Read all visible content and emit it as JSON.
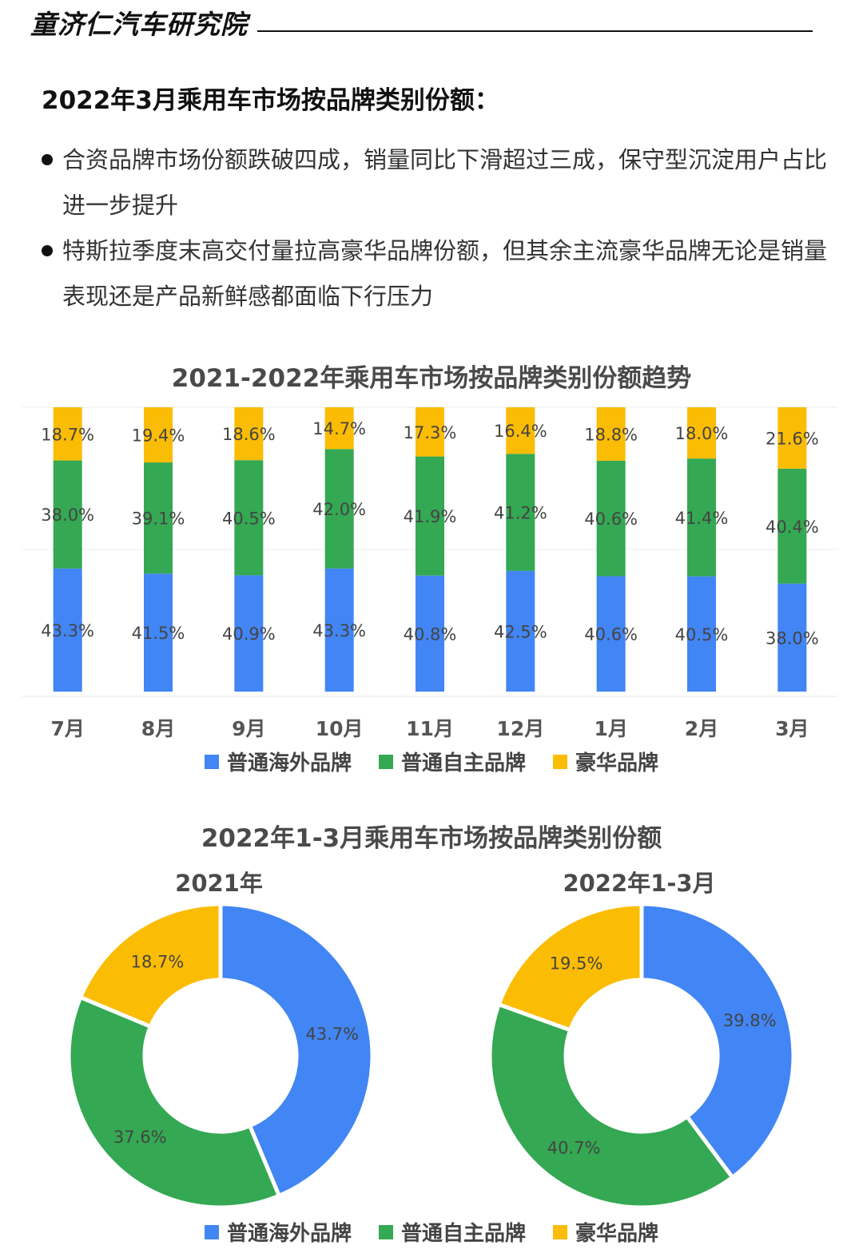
{
  "header": {
    "brand": "童济仁汽车研究院"
  },
  "headline": "2022年3月乘用车市场按品牌类别份额：",
  "bullets": [
    "合资品牌市场份额跌破四成，销量同比下滑超过三成，保守型沉淀用户占比进一步提升",
    "特斯拉季度末高交付量拉高豪华品牌份额，但其余主流豪华品牌无论是销量表现还是产品新鲜感都面临下行压力"
  ],
  "legend": [
    "普通海外品牌",
    "普通自主品牌",
    "豪华品牌"
  ],
  "colors": {
    "overseas": "#4285f4",
    "domestic": "#34a853",
    "luxury": "#fbbc04"
  },
  "chart_data": [
    {
      "type": "bar",
      "stacked": true,
      "title": "2021-2022年乘用车市场按品牌类别份额趋势",
      "categories": [
        "7月",
        "8月",
        "9月",
        "10月",
        "11月",
        "12月",
        "1月",
        "2月",
        "3月"
      ],
      "series": [
        {
          "name": "普通海外品牌",
          "values": [
            43.3,
            41.5,
            40.9,
            43.3,
            40.8,
            42.5,
            40.6,
            40.5,
            38.0
          ],
          "labels": [
            "43.3%",
            "41.5%",
            "40.9%",
            "43.3%",
            "40.8%",
            "42.5%",
            "40.6%",
            "40.5%",
            "38.0%"
          ]
        },
        {
          "name": "普通自主品牌",
          "values": [
            38.0,
            39.1,
            40.5,
            42.0,
            41.9,
            41.2,
            40.6,
            41.4,
            40.4
          ],
          "labels": [
            "38.0%",
            "39.1%",
            "40.5%",
            "42.0%",
            "41.9%",
            "41.2%",
            "40.6%",
            "41.4%",
            "40.4%"
          ]
        },
        {
          "name": "豪华品牌",
          "values": [
            18.7,
            19.4,
            18.6,
            14.7,
            17.3,
            16.4,
            18.8,
            18.0,
            21.6
          ],
          "labels": [
            "18.7%",
            "19.4%",
            "18.6%",
            "14.7%",
            "17.3%",
            "16.4%",
            "18.8%",
            "18.0%",
            "21.6%"
          ]
        }
      ],
      "legend_position": "bottom"
    },
    {
      "type": "pie",
      "donut": true,
      "title": "2022年1-3月乘用车市场按品牌类别份额",
      "subtitle": "2021年",
      "slices": [
        {
          "name": "普通海外品牌",
          "value": 43.7,
          "label": "43.7%"
        },
        {
          "name": "普通自主品牌",
          "value": 37.6,
          "label": "37.6%"
        },
        {
          "name": "豪华品牌",
          "value": 18.7,
          "label": "18.7%"
        }
      ]
    },
    {
      "type": "pie",
      "donut": true,
      "subtitle": "2022年1-3月",
      "slices": [
        {
          "name": "普通海外品牌",
          "value": 39.8,
          "label": "39.8%"
        },
        {
          "name": "普通自主品牌",
          "value": 40.7,
          "label": "40.7%"
        },
        {
          "name": "豪华品牌",
          "value": 19.5,
          "label": "19.5%"
        }
      ],
      "legend_position": "bottom"
    }
  ]
}
